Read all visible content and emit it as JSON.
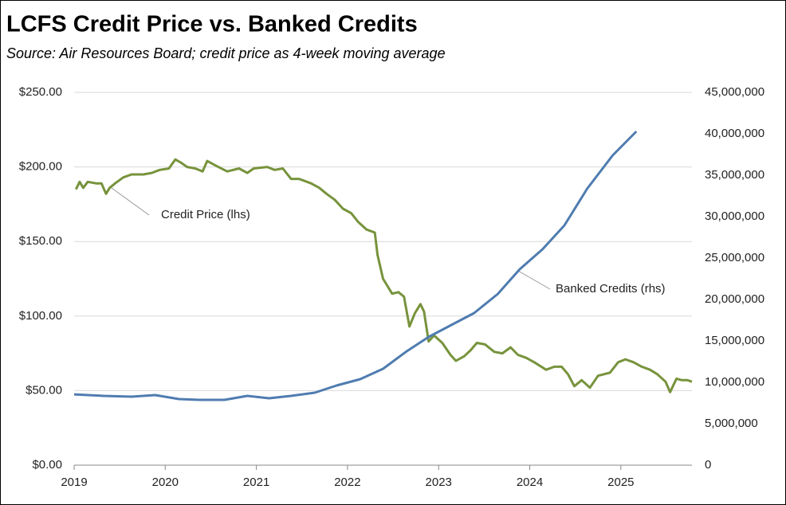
{
  "chart_data": {
    "type": "line",
    "title": "LCFS Credit Price vs. Banked Credits",
    "subtitle": "Source:  Air Resources Board; credit price as 4-week moving average",
    "xlim": [
      2019,
      2025.78
    ],
    "xticks": [
      2019,
      2020,
      2021,
      2022,
      2023,
      2024,
      2025
    ],
    "ylim": [
      0,
      250
    ],
    "yticks": [
      {
        "value": 0,
        "label": "$0.00"
      },
      {
        "value": 50,
        "label": "$50.00"
      },
      {
        "value": 100,
        "label": "$100.00"
      },
      {
        "value": 150,
        "label": "$150.00"
      },
      {
        "value": 200,
        "label": "$200.00"
      },
      {
        "value": 250,
        "label": "$250.00"
      }
    ],
    "y2lim": [
      0,
      45000000
    ],
    "y2ticks": [
      0,
      {
        "value": 5000000,
        "label": "5,000,000"
      },
      {
        "value": 10000000,
        "label": "10,000,000"
      },
      {
        "value": 15000000,
        "label": "15,000,000"
      },
      {
        "value": 20000000,
        "label": "20,000,000"
      },
      {
        "value": 25000000,
        "label": "25,000,000"
      },
      {
        "value": 30000000,
        "label": "30,000,000"
      },
      {
        "value": 35000000,
        "label": "35,000,000"
      },
      {
        "value": 40000000,
        "label": "40,000,000"
      },
      {
        "value": 45000000,
        "label": "45,000,000"
      }
    ],
    "grid": true,
    "series": [
      {
        "name": "Credit Price (lhs)",
        "color": "#77933c",
        "x": [
          2019.02,
          2019.06,
          2019.1,
          2019.15,
          2019.24,
          2019.3,
          2019.35,
          2019.39,
          2019.45,
          2019.54,
          2019.63,
          2019.76,
          2019.85,
          2019.94,
          2020.04,
          2020.11,
          2020.17,
          2020.24,
          2020.33,
          2020.41,
          2020.46,
          2020.55,
          2020.68,
          2020.81,
          2020.9,
          2020.97,
          2021.12,
          2021.2,
          2021.29,
          2021.38,
          2021.47,
          2021.6,
          2021.69,
          2021.77,
          2021.86,
          2021.95,
          2022.04,
          2022.12,
          2022.21,
          2022.3,
          2022.33,
          2022.39,
          2022.43,
          2022.49,
          2022.56,
          2022.62,
          2022.68,
          2022.74,
          2022.8,
          2022.84,
          2022.89,
          2022.95,
          2023.04,
          2023.13,
          2023.19,
          2023.28,
          2023.35,
          2023.42,
          2023.51,
          2023.61,
          2023.7,
          2023.79,
          2023.87,
          2023.96,
          2024.05,
          2024.18,
          2024.27,
          2024.35,
          2024.42,
          2024.49,
          2024.57,
          2024.66,
          2024.75,
          2024.88,
          2024.97,
          2025.05,
          2025.14,
          2025.23,
          2025.32,
          2025.4,
          2025.49,
          2025.54,
          2025.61,
          2025.67,
          2025.73,
          2025.78
        ],
        "values": [
          185,
          190,
          186,
          190,
          189,
          189,
          182,
          186,
          189,
          193,
          195,
          195,
          196,
          198,
          199,
          205,
          203,
          200,
          199,
          197,
          204,
          201,
          197,
          199,
          196,
          199,
          200,
          198,
          199,
          192,
          192,
          189,
          186,
          182,
          178,
          172,
          169,
          163,
          158,
          156,
          141,
          125,
          121,
          115,
          116,
          113,
          93,
          102,
          108,
          103,
          83,
          87,
          82,
          74,
          70,
          73,
          77,
          82,
          81,
          76,
          75,
          79,
          74,
          72,
          69,
          64,
          66,
          66,
          61,
          53,
          57,
          52,
          60,
          62,
          69,
          71,
          69,
          66,
          64,
          61,
          56,
          49,
          58,
          57,
          57,
          56
        ]
      },
      {
        "name": "Banked Credits (rhs)",
        "color": "#4f7cb0",
        "axis": "y2",
        "x": [
          2019.0,
          2019.32,
          2019.63,
          2019.89,
          2020.15,
          2020.37,
          2020.65,
          2020.9,
          2021.14,
          2021.38,
          2021.64,
          2021.88,
          2022.14,
          2022.39,
          2022.65,
          2022.89,
          2023.14,
          2023.39,
          2023.65,
          2023.89,
          2024.14,
          2024.38,
          2024.63,
          2024.91,
          2025.17
        ],
        "values": [
          8550000,
          8370000,
          8270000,
          8460000,
          7980000,
          7880000,
          7880000,
          8370000,
          8080000,
          8370000,
          8750000,
          9620000,
          10380000,
          11630000,
          13750000,
          15480000,
          16920000,
          18370000,
          20670000,
          23650000,
          26060000,
          28940000,
          33370000,
          37400000,
          40290000
        ]
      }
    ]
  }
}
